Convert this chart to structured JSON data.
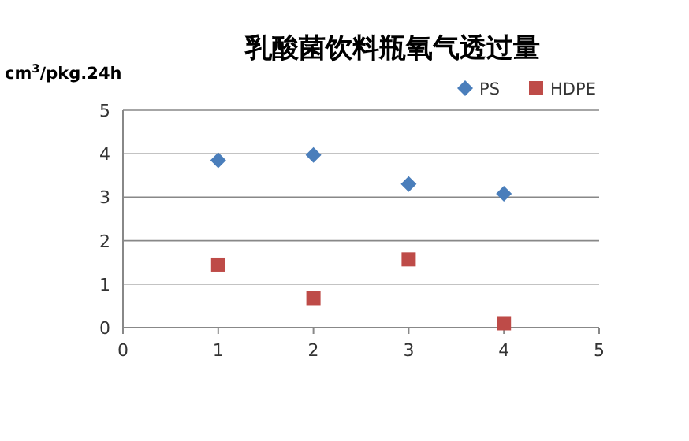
{
  "chart_data": {
    "type": "scatter",
    "title": "乳酸菌饮料瓶氧气透过量",
    "ylabel": "cm$^{3}$/pkg.24h",
    "xlim": [
      0,
      5
    ],
    "xticks": [
      0,
      1,
      2,
      3,
      4,
      5
    ],
    "ylim": [
      0,
      5
    ],
    "yticks": [
      0,
      1,
      2,
      3,
      4,
      5
    ],
    "grid": "y",
    "legend": "top right",
    "series": [
      {
        "name": "PS",
        "color": "#4a7ebb",
        "marker": "diamond",
        "x": [
          1,
          2,
          3,
          4
        ],
        "values": [
          3.85,
          3.97,
          3.3,
          3.08
        ]
      },
      {
        "name": "HDPE",
        "color": "#be4b48",
        "marker": "square",
        "x": [
          1,
          2,
          3,
          4
        ],
        "values": [
          1.45,
          0.68,
          1.57,
          0.1
        ]
      }
    ]
  }
}
